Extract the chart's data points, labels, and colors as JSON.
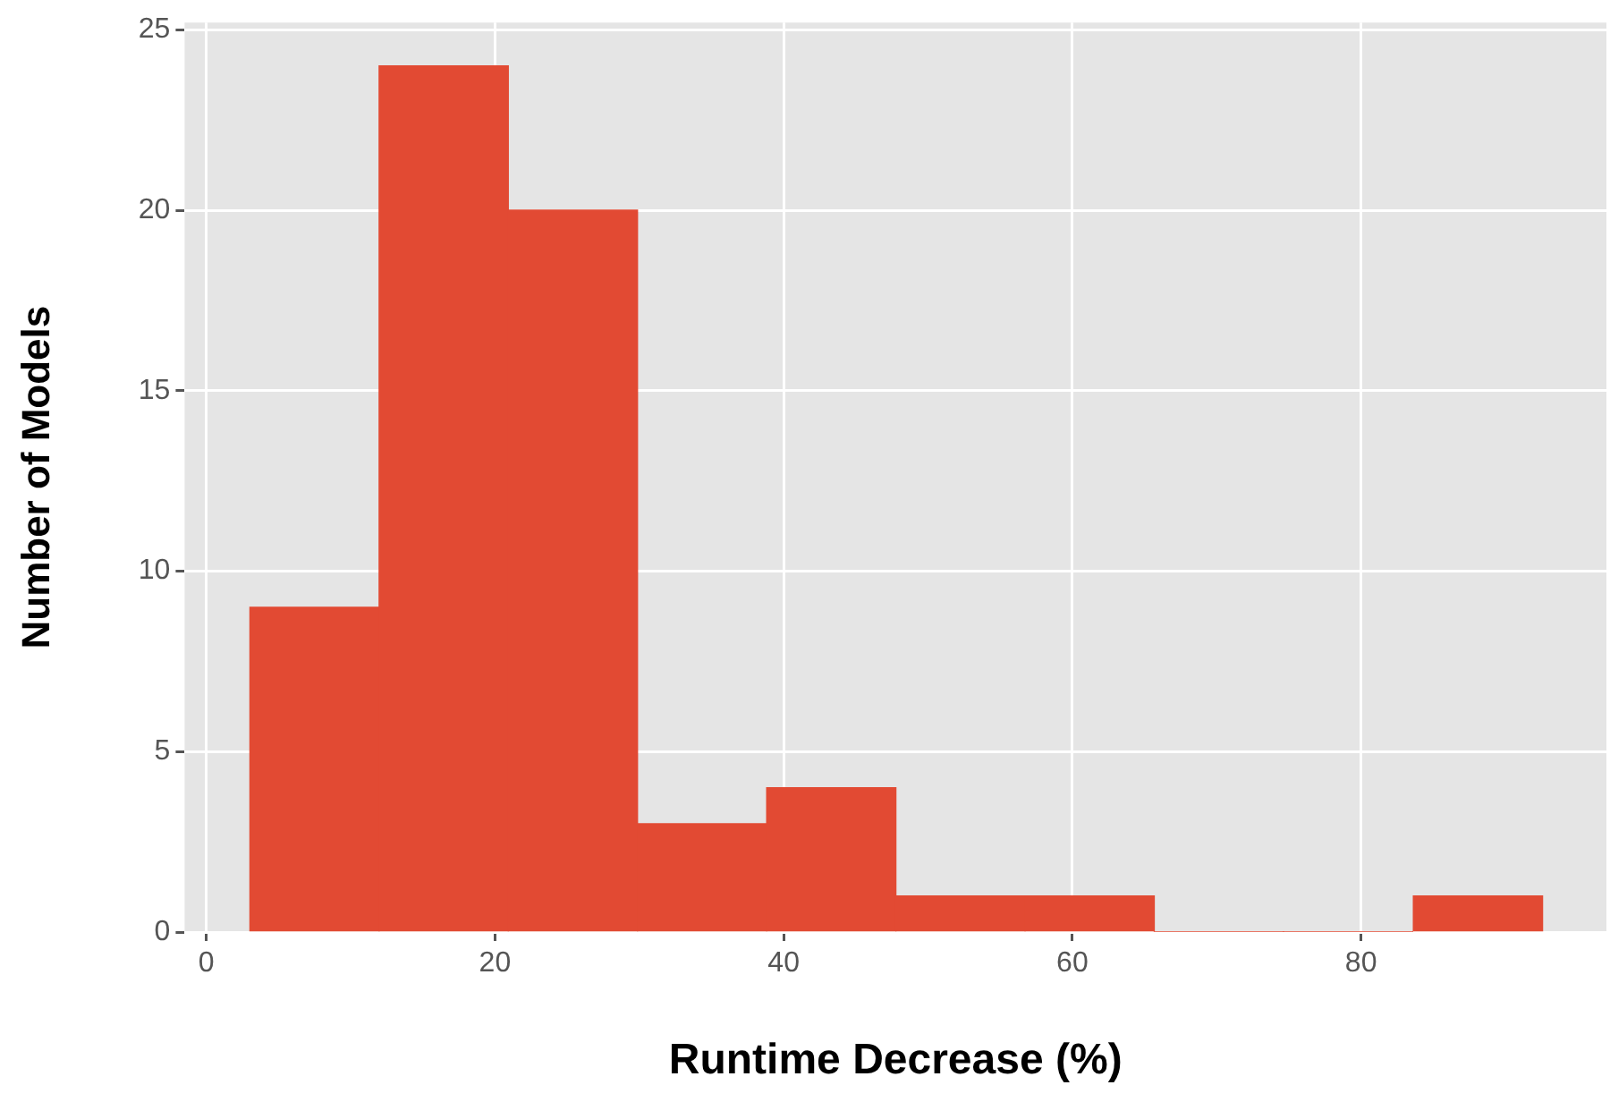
{
  "chart_data": {
    "type": "histogram",
    "xlabel": "Runtime Decrease (%)",
    "ylabel": "Number of Models",
    "bins": [
      3.0,
      12.0,
      20.9,
      29.9,
      38.8,
      47.8,
      56.7,
      65.7,
      74.6,
      83.6,
      92.6
    ],
    "values": [
      9,
      24,
      20,
      3,
      4,
      1,
      1,
      0,
      0,
      1
    ],
    "color": "#e24a33",
    "xlim": [
      -1.5,
      97
    ],
    "xticks": [
      0,
      20,
      40,
      60,
      80
    ],
    "ylim": [
      0,
      25.2
    ],
    "yticks": [
      0,
      5,
      10,
      15,
      20,
      25
    ],
    "grid": true
  }
}
